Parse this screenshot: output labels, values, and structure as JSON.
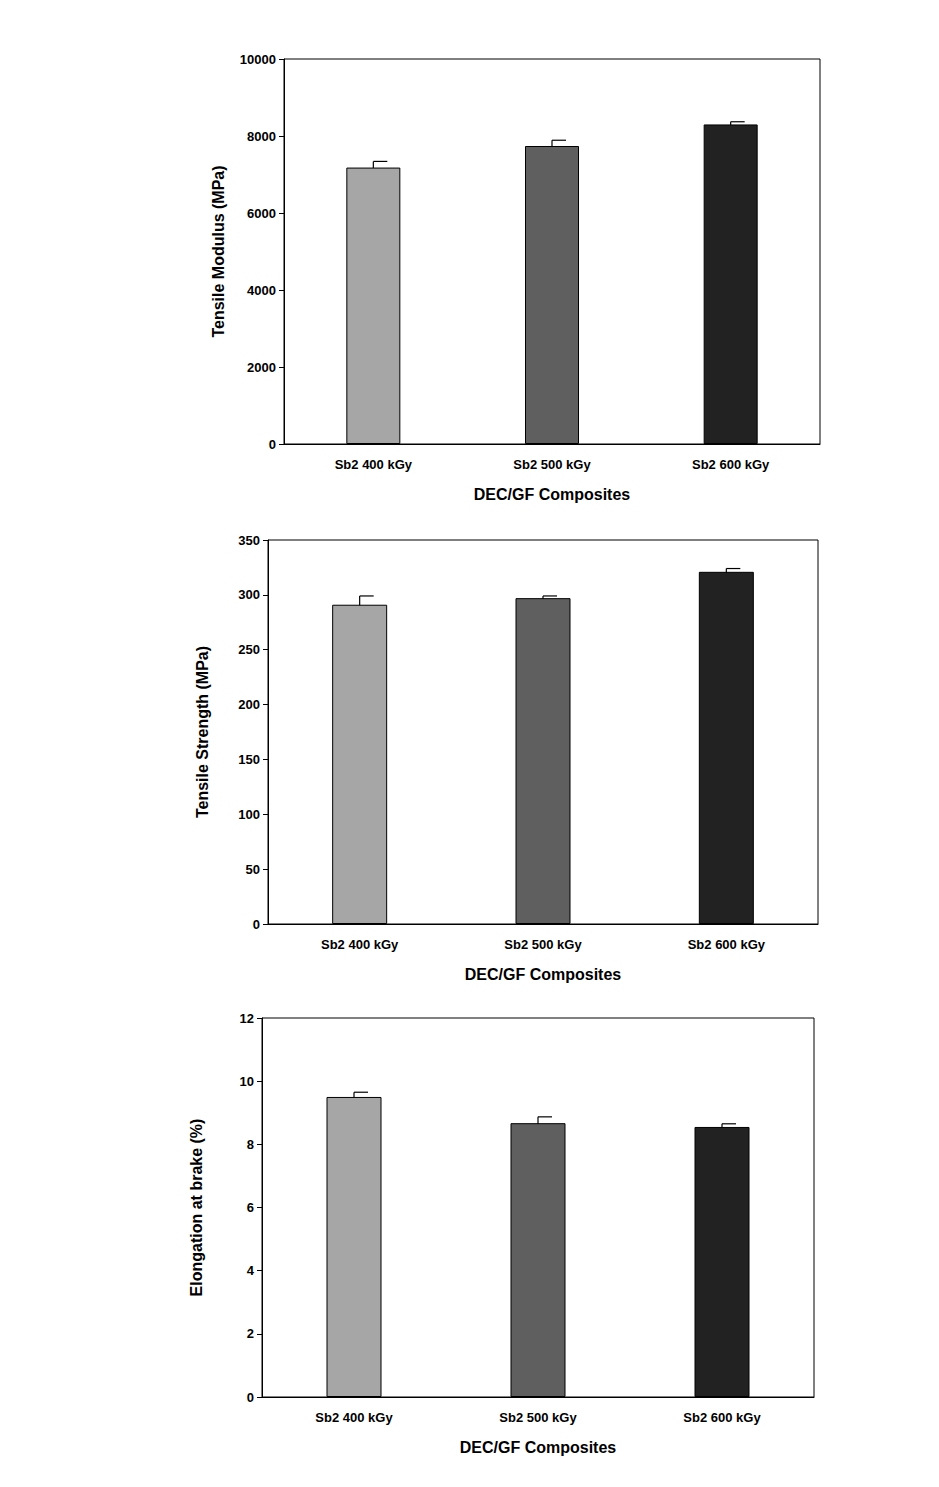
{
  "chart_data": [
    {
      "type": "bar",
      "xlabel": "DEC/GF Composites",
      "ylabel": "Tensile Modulus (MPa)",
      "categories": [
        "Sb2 400 kGy",
        "Sb2 500 kGy",
        "Sb2 600 kGy"
      ],
      "values": [
        7180,
        7740,
        8300
      ],
      "errors": [
        160,
        150,
        70
      ],
      "colors": [
        "#a6a6a6",
        "#5f5f5f",
        "#222222"
      ],
      "ylim": [
        0,
        10000
      ],
      "yticks": [
        0,
        2000,
        4000,
        6000,
        8000,
        10000
      ],
      "grid": false
    },
    {
      "type": "bar",
      "xlabel": "DEC/GF Composites",
      "ylabel": "Tensile Strength (MPa)",
      "categories": [
        "Sb2 400 kGy",
        "Sb2 500 kGy",
        "Sb2 600 kGy"
      ],
      "values": [
        291,
        297,
        321
      ],
      "errors": [
        8,
        2,
        3
      ],
      "colors": [
        "#a6a6a6",
        "#5f5f5f",
        "#222222"
      ],
      "ylim": [
        0,
        350
      ],
      "yticks": [
        0,
        50,
        100,
        150,
        200,
        250,
        300,
        350
      ],
      "grid": false
    },
    {
      "type": "bar",
      "xlabel": "DEC/GF Composites",
      "ylabel": "Elongation at brake (%)",
      "categories": [
        "Sb2 400 kGy",
        "Sb2 500 kGy",
        "Sb2 600 kGy"
      ],
      "values": [
        9.5,
        8.67,
        8.55
      ],
      "errors": [
        0.15,
        0.2,
        0.1
      ],
      "colors": [
        "#a6a6a6",
        "#5f5f5f",
        "#222222"
      ],
      "ylim": [
        0,
        12
      ],
      "yticks": [
        0,
        2,
        4,
        6,
        8,
        10,
        12
      ],
      "grid": false
    }
  ]
}
